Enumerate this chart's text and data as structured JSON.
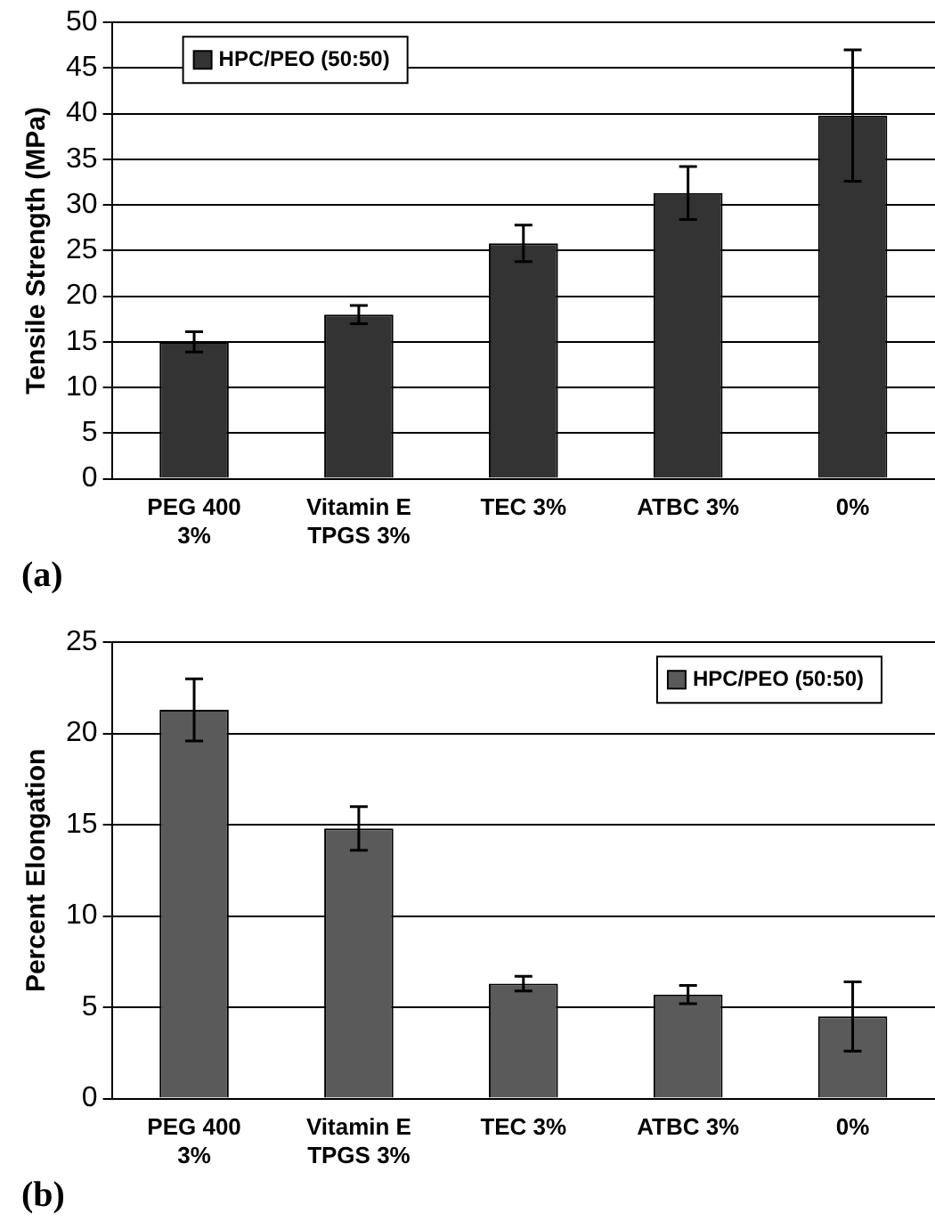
{
  "chart_data": [
    {
      "type": "bar",
      "ylabel": "Tensile Strength (MPa)",
      "categories": [
        "PEG 400\n3%",
        "Vitamin E\nTPGS 3%",
        "TEC 3%",
        "ATBC 3%",
        "0%"
      ],
      "series": [
        {
          "name": "HPC/PEO (50:50)",
          "color": "#333333",
          "values": [
            15,
            18,
            25.8,
            31.3,
            39.8
          ],
          "errors": [
            1.1,
            1,
            2,
            2.9,
            7.2
          ]
        }
      ],
      "ylim": [
        0,
        50
      ],
      "yticks": [
        0,
        5,
        10,
        15,
        20,
        25,
        30,
        35,
        40,
        45,
        50
      ],
      "grid": "y",
      "legend": "top left",
      "annotations": [
        "(a)"
      ]
    },
    {
      "type": "bar",
      "ylabel": "Percent Elongation",
      "categories": [
        "PEG 400\n3%",
        "Vitamin E\nTPGS 3%",
        "TEC 3%",
        "ATBC 3%",
        "0%"
      ],
      "series": [
        {
          "name": "HPC/PEO (50:50)",
          "color": "#5a5a5a",
          "values": [
            21.3,
            14.8,
            6.3,
            5.7,
            4.5
          ],
          "errors": [
            1.7,
            1.2,
            0.4,
            0.5,
            1.9
          ]
        }
      ],
      "ylim": [
        0,
        25
      ],
      "yticks": [
        0,
        5,
        10,
        15,
        20,
        25
      ],
      "grid": "y",
      "legend": "top right",
      "annotations": [
        "(b)"
      ]
    }
  ]
}
